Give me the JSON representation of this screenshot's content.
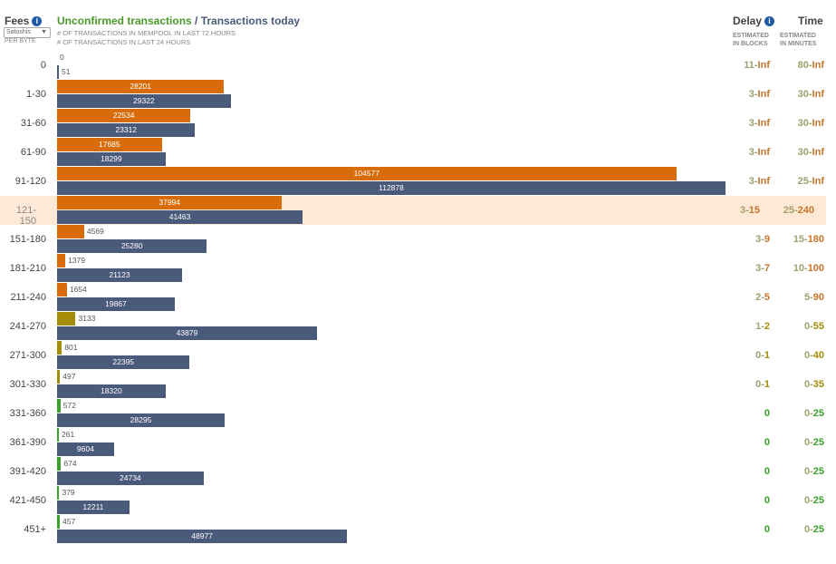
{
  "header": {
    "fees_title": "Fees",
    "unit_select": "Satoshis",
    "per_byte": "PER BYTE",
    "title_unconfirmed": "Unconfirmed transactions",
    "title_sep": " / ",
    "title_today": "Transactions today",
    "sub1": "# OF TRANSACTIONS IN MEMPOOL IN LAST 72 HOURS",
    "sub2": "# OF TRANSACTIONS IN LAST 24 HOURS",
    "delay_title": "Delay",
    "delay_sub1": "ESTIMATED",
    "delay_sub2": "IN BLOCKS",
    "time_title": "Time",
    "time_sub1": "ESTIMATED",
    "time_sub2": "IN MINUTES"
  },
  "colors": {
    "orange": "#d96c0a",
    "olive": "#a48c05",
    "green": "#3aa22a",
    "slate": "#4a5a7a",
    "highlight": "#fde9d6"
  },
  "chart_data": {
    "type": "bar",
    "categories": [
      "0",
      "1-30",
      "31-60",
      "61-90",
      "91-120",
      "121-150",
      "151-180",
      "181-210",
      "211-240",
      "241-270",
      "271-300",
      "301-330",
      "331-360",
      "361-390",
      "391-420",
      "421-450",
      "451+"
    ],
    "series": [
      {
        "name": "Unconfirmed transactions",
        "values": [
          0,
          28201,
          22534,
          17685,
          104577,
          37994,
          4569,
          1379,
          1654,
          3133,
          801,
          497,
          572,
          261,
          674,
          379,
          457
        ]
      },
      {
        "name": "Transactions today",
        "values": [
          51,
          29322,
          23312,
          18299,
          112878,
          41463,
          25280,
          21123,
          19867,
          43879,
          22395,
          18320,
          28295,
          9604,
          24734,
          12211,
          48977
        ]
      }
    ],
    "bar_colors": [
      "orange",
      "orange",
      "orange",
      "orange",
      "orange",
      "orange",
      "orange",
      "orange",
      "orange",
      "olive",
      "olive",
      "olive",
      "green",
      "green",
      "green",
      "green",
      "green"
    ],
    "delay": [
      {
        "lo": "11",
        "hi": "Inf",
        "lc": "#a0a070",
        "hc": "#c87428"
      },
      {
        "lo": "3",
        "hi": "Inf",
        "lc": "#a0a070",
        "hc": "#c87428"
      },
      {
        "lo": "3",
        "hi": "Inf",
        "lc": "#a0a070",
        "hc": "#c87428"
      },
      {
        "lo": "3",
        "hi": "Inf",
        "lc": "#a0a070",
        "hc": "#c87428"
      },
      {
        "lo": "3",
        "hi": "Inf",
        "lc": "#a0a070",
        "hc": "#c87428"
      },
      {
        "lo": "3",
        "hi": "15",
        "lc": "#a0a070",
        "hc": "#c87428"
      },
      {
        "lo": "3",
        "hi": "9",
        "lc": "#a0a070",
        "hc": "#c87428"
      },
      {
        "lo": "3",
        "hi": "7",
        "lc": "#a0a070",
        "hc": "#c87428"
      },
      {
        "lo": "2",
        "hi": "5",
        "lc": "#a0a070",
        "hc": "#c87428"
      },
      {
        "lo": "1",
        "hi": "2",
        "lc": "#a0a070",
        "hc": "#a48c05"
      },
      {
        "lo": "0",
        "hi": "1",
        "lc": "#a0a070",
        "hc": "#a48c05"
      },
      {
        "lo": "0",
        "hi": "1",
        "lc": "#a0a070",
        "hc": "#a48c05"
      },
      {
        "lo": "0",
        "hi": "",
        "lc": "#3aa22a",
        "hc": "#3aa22a"
      },
      {
        "lo": "0",
        "hi": "",
        "lc": "#3aa22a",
        "hc": "#3aa22a"
      },
      {
        "lo": "0",
        "hi": "",
        "lc": "#3aa22a",
        "hc": "#3aa22a"
      },
      {
        "lo": "0",
        "hi": "",
        "lc": "#3aa22a",
        "hc": "#3aa22a"
      },
      {
        "lo": "0",
        "hi": "",
        "lc": "#3aa22a",
        "hc": "#3aa22a"
      }
    ],
    "time": [
      {
        "lo": "80",
        "hi": "Inf",
        "lc": "#a0a070",
        "hc": "#c87428"
      },
      {
        "lo": "30",
        "hi": "Inf",
        "lc": "#a0a070",
        "hc": "#c87428"
      },
      {
        "lo": "30",
        "hi": "Inf",
        "lc": "#a0a070",
        "hc": "#c87428"
      },
      {
        "lo": "30",
        "hi": "Inf",
        "lc": "#a0a070",
        "hc": "#c87428"
      },
      {
        "lo": "25",
        "hi": "Inf",
        "lc": "#a0a070",
        "hc": "#c87428"
      },
      {
        "lo": "25",
        "hi": "240",
        "lc": "#a0a070",
        "hc": "#c87428"
      },
      {
        "lo": "15",
        "hi": "180",
        "lc": "#a0a070",
        "hc": "#c87428"
      },
      {
        "lo": "10",
        "hi": "100",
        "lc": "#a0a070",
        "hc": "#c87428"
      },
      {
        "lo": "5",
        "hi": "90",
        "lc": "#a0a070",
        "hc": "#c87428"
      },
      {
        "lo": "0",
        "hi": "55",
        "lc": "#a0a070",
        "hc": "#a48c05"
      },
      {
        "lo": "0",
        "hi": "40",
        "lc": "#a0a070",
        "hc": "#a48c05"
      },
      {
        "lo": "0",
        "hi": "35",
        "lc": "#a0a070",
        "hc": "#a48c05"
      },
      {
        "lo": "0",
        "hi": "25",
        "lc": "#a0a070",
        "hc": "#3aa22a"
      },
      {
        "lo": "0",
        "hi": "25",
        "lc": "#a0a070",
        "hc": "#3aa22a"
      },
      {
        "lo": "0",
        "hi": "25",
        "lc": "#a0a070",
        "hc": "#3aa22a"
      },
      {
        "lo": "0",
        "hi": "25",
        "lc": "#a0a070",
        "hc": "#3aa22a"
      },
      {
        "lo": "0",
        "hi": "25",
        "lc": "#a0a070",
        "hc": "#3aa22a"
      }
    ],
    "highlight_row": "121-150"
  }
}
